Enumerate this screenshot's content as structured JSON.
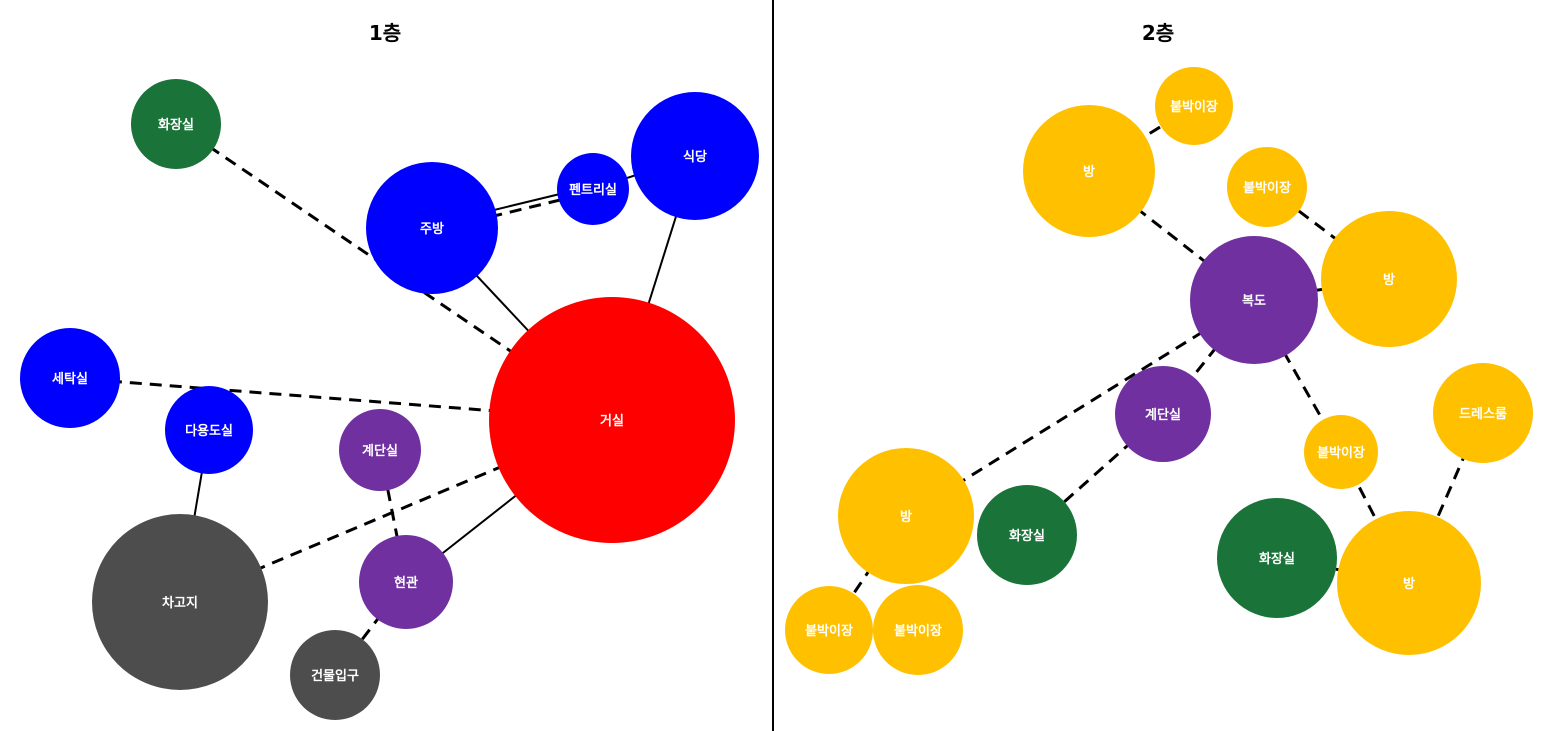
{
  "colors": {
    "living": "#ff0000",
    "blue_space": "#0000ff",
    "purple_space": "#7030a0",
    "bathroom": "#1a7338",
    "gray_space": "#4d4d4d",
    "yellow_space": "#ffc000"
  },
  "floors": [
    {
      "title": "1층",
      "nodes": [
        {
          "id": "bath1",
          "label": "화장실",
          "color": "#1a7338"
        },
        {
          "id": "dining",
          "label": "식당",
          "color": "#0000ff"
        },
        {
          "id": "pantry",
          "label": "펜트리실",
          "color": "#0000ff"
        },
        {
          "id": "kitchen",
          "label": "주방",
          "color": "#0000ff"
        },
        {
          "id": "laundry",
          "label": "세탁실",
          "color": "#0000ff"
        },
        {
          "id": "utility",
          "label": "다용도실",
          "color": "#0000ff"
        },
        {
          "id": "stairs1",
          "label": "계단실",
          "color": "#7030a0"
        },
        {
          "id": "living",
          "label": "거실",
          "color": "#ff0000"
        },
        {
          "id": "garage",
          "label": "차고지",
          "color": "#4d4d4d"
        },
        {
          "id": "foyer",
          "label": "현관",
          "color": "#7030a0"
        },
        {
          "id": "entrance",
          "label": "건물입구",
          "color": "#4d4d4d"
        }
      ],
      "edges": [
        {
          "from": "bath1",
          "to": "living",
          "style": "dashed"
        },
        {
          "from": "kitchen",
          "to": "living",
          "style": "solid"
        },
        {
          "from": "kitchen",
          "to": "pantry",
          "style": "solid"
        },
        {
          "from": "kitchen",
          "to": "pantry",
          "style": "dashed"
        },
        {
          "from": "pantry",
          "to": "dining",
          "style": "solid"
        },
        {
          "from": "dining",
          "to": "living",
          "style": "solid"
        },
        {
          "from": "laundry",
          "to": "living",
          "style": "dashed"
        },
        {
          "from": "utility",
          "to": "garage",
          "style": "solid"
        },
        {
          "from": "garage",
          "to": "living",
          "style": "dashed"
        },
        {
          "from": "stairs1",
          "to": "foyer",
          "style": "dashed"
        },
        {
          "from": "foyer",
          "to": "living",
          "style": "solid"
        },
        {
          "from": "foyer",
          "to": "entrance",
          "style": "dashed"
        }
      ]
    },
    {
      "title": "2층",
      "nodes": [
        {
          "id": "closet_top",
          "label": "붙박이장",
          "color": "#ffc000"
        },
        {
          "id": "room_nw",
          "label": "방",
          "color": "#ffc000"
        },
        {
          "id": "closet_mid",
          "label": "붙박이장",
          "color": "#ffc000"
        },
        {
          "id": "room_ne",
          "label": "방",
          "color": "#ffc000"
        },
        {
          "id": "hall",
          "label": "복도",
          "color": "#7030a0"
        },
        {
          "id": "stairs2",
          "label": "계단실",
          "color": "#7030a0"
        },
        {
          "id": "dress",
          "label": "드레스룸",
          "color": "#ffc000"
        },
        {
          "id": "closet_right",
          "label": "붙박이장",
          "color": "#ffc000"
        },
        {
          "id": "room_sw",
          "label": "방",
          "color": "#ffc000"
        },
        {
          "id": "bath2",
          "label": "화장실",
          "color": "#1a7338"
        },
        {
          "id": "bath3",
          "label": "화장실",
          "color": "#1a7338"
        },
        {
          "id": "room_se",
          "label": "방",
          "color": "#ffc000"
        },
        {
          "id": "closet_bl",
          "label": "붙박이장",
          "color": "#ffc000"
        },
        {
          "id": "closet_br",
          "label": "붙박이장",
          "color": "#ffc000"
        }
      ],
      "edges": [
        {
          "from": "closet_top",
          "to": "room_nw",
          "style": "dashed"
        },
        {
          "from": "room_nw",
          "to": "hall",
          "style": "dashed"
        },
        {
          "from": "closet_mid",
          "to": "room_ne",
          "style": "dashed"
        },
        {
          "from": "hall",
          "to": "room_ne",
          "style": "dashed"
        },
        {
          "from": "hall",
          "to": "stairs2",
          "style": "dashed"
        },
        {
          "from": "hall",
          "to": "room_sw",
          "style": "dashed"
        },
        {
          "from": "hall",
          "to": "closet_right",
          "style": "dashed"
        },
        {
          "from": "stairs2",
          "to": "bath2",
          "style": "dashed"
        },
        {
          "from": "closet_right",
          "to": "room_se",
          "style": "dashed"
        },
        {
          "from": "dress",
          "to": "room_se",
          "style": "dashed"
        },
        {
          "from": "bath3",
          "to": "room_se",
          "style": "dashed"
        },
        {
          "from": "room_sw",
          "to": "closet_bl",
          "style": "dashed"
        }
      ]
    }
  ]
}
